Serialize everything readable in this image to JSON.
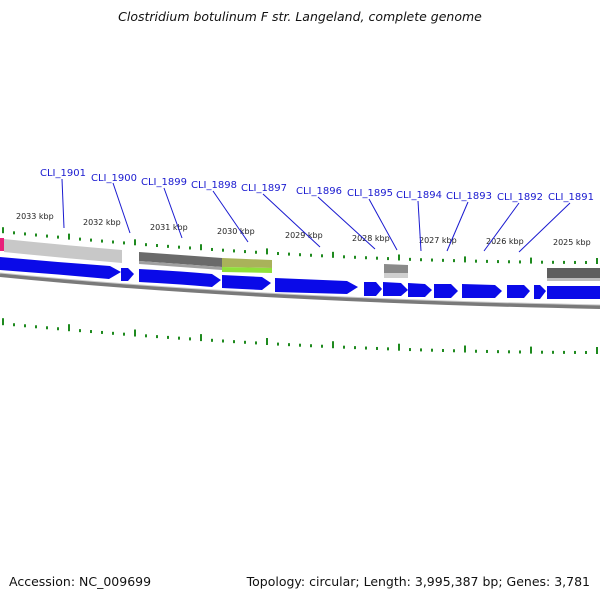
{
  "title": "Clostridium botulinum F str. Langeland, complete genome",
  "footer": {
    "accession": "Accession: NC_009699",
    "summary": "Topology: circular; Length: 3,995,387 bp; Genes: 3,781"
  },
  "kbp_ticks": [
    "2033 kbp",
    "2032 kbp",
    "2031 kbp",
    "2030 kbp",
    "2029 kbp",
    "2028 kbp",
    "2027 kbp",
    "2026 kbp",
    "2025 kbp"
  ],
  "gene_labels": [
    "CLI_1901",
    "CLI_1900",
    "CLI_1899",
    "CLI_1898",
    "CLI_1897",
    "CLI_1896",
    "CLI_1895",
    "CLI_1894",
    "CLI_1893",
    "CLI_1892",
    "CLI_1891"
  ],
  "colors": {
    "gene": "#0a0ae8",
    "gene_label": "#1a1ad0",
    "tick": "#1e8a1e",
    "backbone": "#808080",
    "feature_light": "#c8c8c8",
    "feature_dark": "#6a6a6a",
    "feature_olive": "#a9b25a",
    "feature_lime": "#8fe03a",
    "feature_pink": "#e8207a"
  }
}
